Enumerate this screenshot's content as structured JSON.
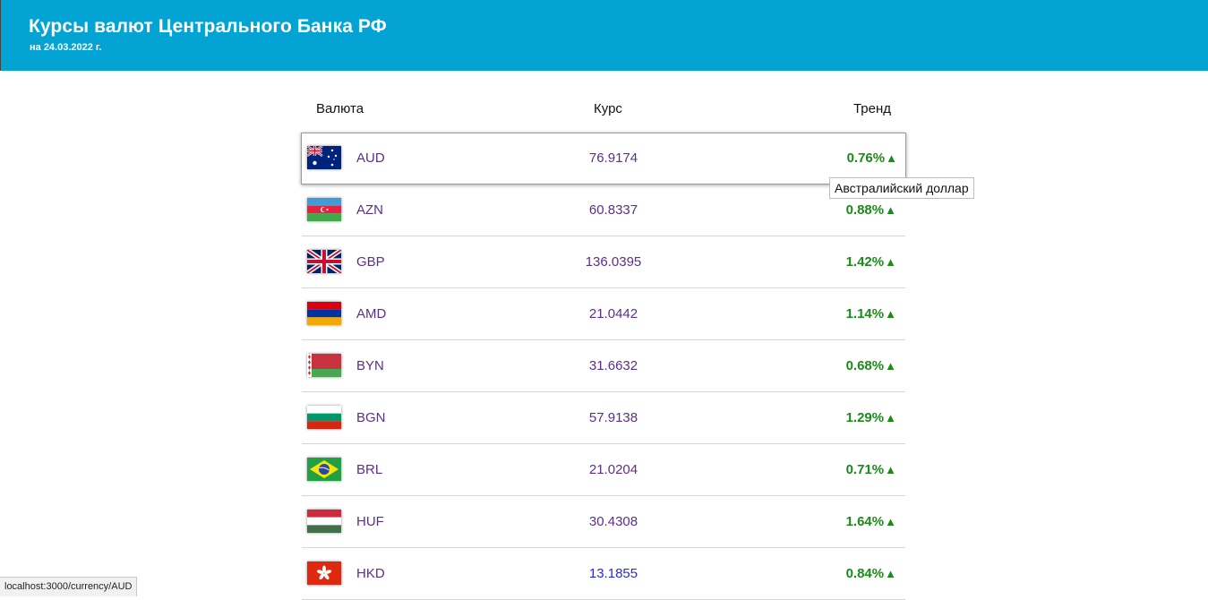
{
  "header": {
    "title": "Курсы валют Центрального Банка РФ",
    "subtitle": "на 24.03.2022 г."
  },
  "table": {
    "columns": [
      "Валюта",
      "Курс",
      "Тренд"
    ],
    "rows": [
      {
        "code": "AUD",
        "rate": "76.9174",
        "trend": "0.76%",
        "direction": "up",
        "flag": "australia-flag-icon"
      },
      {
        "code": "AZN",
        "rate": "60.8337",
        "trend": "0.88%",
        "direction": "up",
        "flag": "azerbaijan-flag-icon"
      },
      {
        "code": "GBP",
        "rate": "136.0395",
        "trend": "1.42%",
        "direction": "up",
        "flag": "uk-flag-icon"
      },
      {
        "code": "AMD",
        "rate": "21.0442",
        "trend": "1.14%",
        "direction": "up",
        "flag": "armenia-flag-icon"
      },
      {
        "code": "BYN",
        "rate": "31.6632",
        "trend": "0.68%",
        "direction": "up",
        "flag": "belarus-flag-icon"
      },
      {
        "code": "BGN",
        "rate": "57.9138",
        "trend": "1.29%",
        "direction": "up",
        "flag": "bulgaria-flag-icon"
      },
      {
        "code": "BRL",
        "rate": "21.0204",
        "trend": "0.71%",
        "direction": "up",
        "flag": "brazil-flag-icon"
      },
      {
        "code": "HUF",
        "rate": "30.4308",
        "trend": "1.64%",
        "direction": "up",
        "flag": "hungary-flag-icon"
      },
      {
        "code": "HKD",
        "rate": "13.1855",
        "trend": "0.84%",
        "direction": "up",
        "flag": "hong-kong-flag-icon"
      }
    ],
    "trend_arrow": "▲"
  },
  "tooltip": "Австралийский доллар",
  "status_url": "localhost:3000/currency/AUD",
  "colors": {
    "header_bg": "#03a3d4",
    "code_text": "#5b2f8a",
    "trend_up": "#1b8a1b"
  }
}
